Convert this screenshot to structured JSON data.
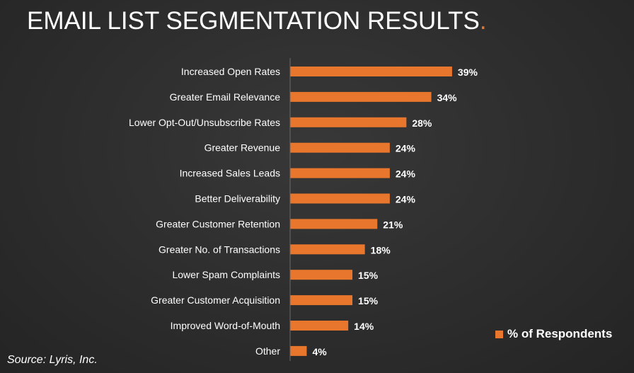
{
  "title": {
    "text": "EMAIL LIST SEGMENTATION RESULTS",
    "accent_dot": "."
  },
  "colors": {
    "bar": "#e8762c",
    "background": "#2d2d2d",
    "text": "#ffffff",
    "axis": "#6a6a6a"
  },
  "legend": {
    "label": "% of Respondents"
  },
  "source": "Source: Lyris, Inc.",
  "chart_data": {
    "type": "bar",
    "orientation": "horizontal",
    "categories": [
      "Increased Open Rates",
      "Greater Email Relevance",
      "Lower Opt-Out/Unsubscribe Rates",
      "Greater Revenue",
      "Increased Sales Leads",
      "Better Deliverability",
      "Greater Customer Retention",
      "Greater No. of Transactions",
      "Lower Spam Complaints",
      "Greater Customer Acquisition",
      "Improved Word-of-Mouth",
      "Other"
    ],
    "series": [
      {
        "name": "% of Respondents",
        "values": [
          39,
          34,
          28,
          24,
          24,
          24,
          21,
          18,
          15,
          15,
          14,
          4
        ],
        "labels": [
          "39%",
          "34%",
          "28%",
          "24%",
          "24%",
          "24%",
          "21%",
          "18%",
          "15%",
          "15%",
          "14%",
          "4%"
        ]
      }
    ],
    "legend_position": "bottom-right",
    "grid": false
  }
}
